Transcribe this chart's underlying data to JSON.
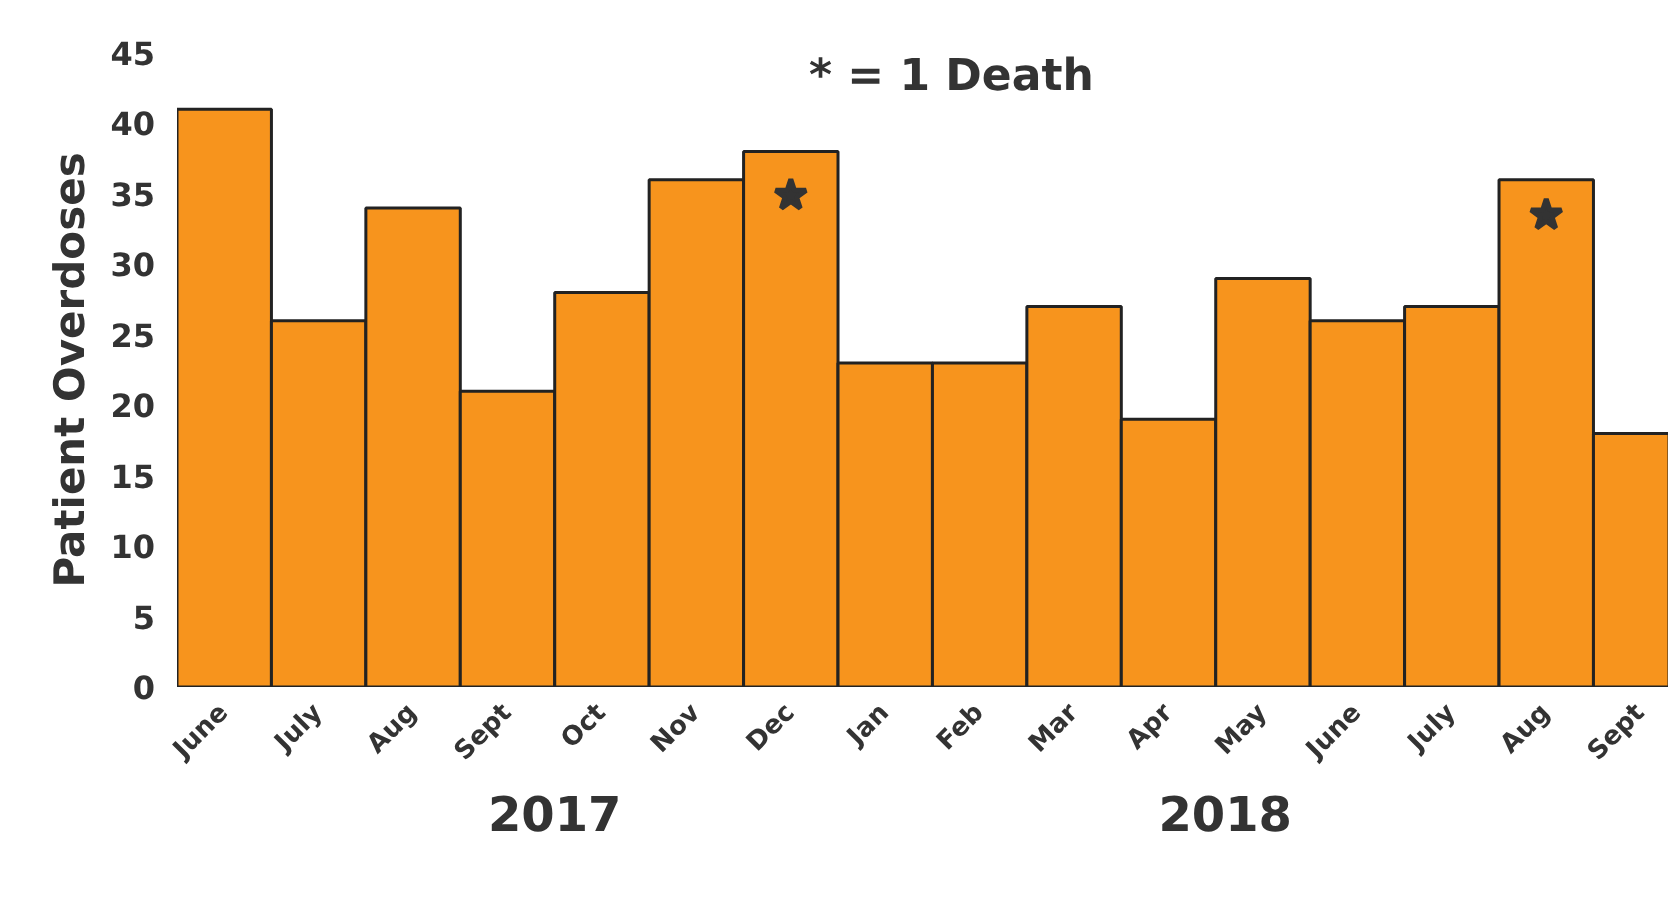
{
  "chart_data": {
    "type": "bar",
    "ylabel": "Patient Overdoses",
    "categories": [
      "June",
      "July",
      "Aug",
      "Sept",
      "Oct",
      "Nov",
      "Dec",
      "Jan",
      "Feb",
      "Mar",
      "Apr",
      "May",
      "June",
      "July",
      "Aug",
      "Sept"
    ],
    "series": [
      {
        "color": "#f7941d",
        "values": [
          41,
          26,
          34,
          21,
          28,
          36,
          38,
          23,
          23,
          27,
          19,
          29,
          26,
          27,
          36,
          18
        ]
      },
      {
        "type": "scatter",
        "marker": "star",
        "color": "#333333",
        "values": [
          null,
          null,
          null,
          null,
          null,
          null,
          34.9,
          null,
          null,
          null,
          null,
          null,
          null,
          null,
          33.5,
          null
        ]
      }
    ],
    "ylim": [
      0,
      45
    ],
    "yticks": [
      0,
      5,
      10,
      15,
      20,
      25,
      30,
      35,
      40,
      45
    ],
    "annotations": [
      "* = 1 Death",
      "2017",
      "2018"
    ],
    "grid": false
  }
}
